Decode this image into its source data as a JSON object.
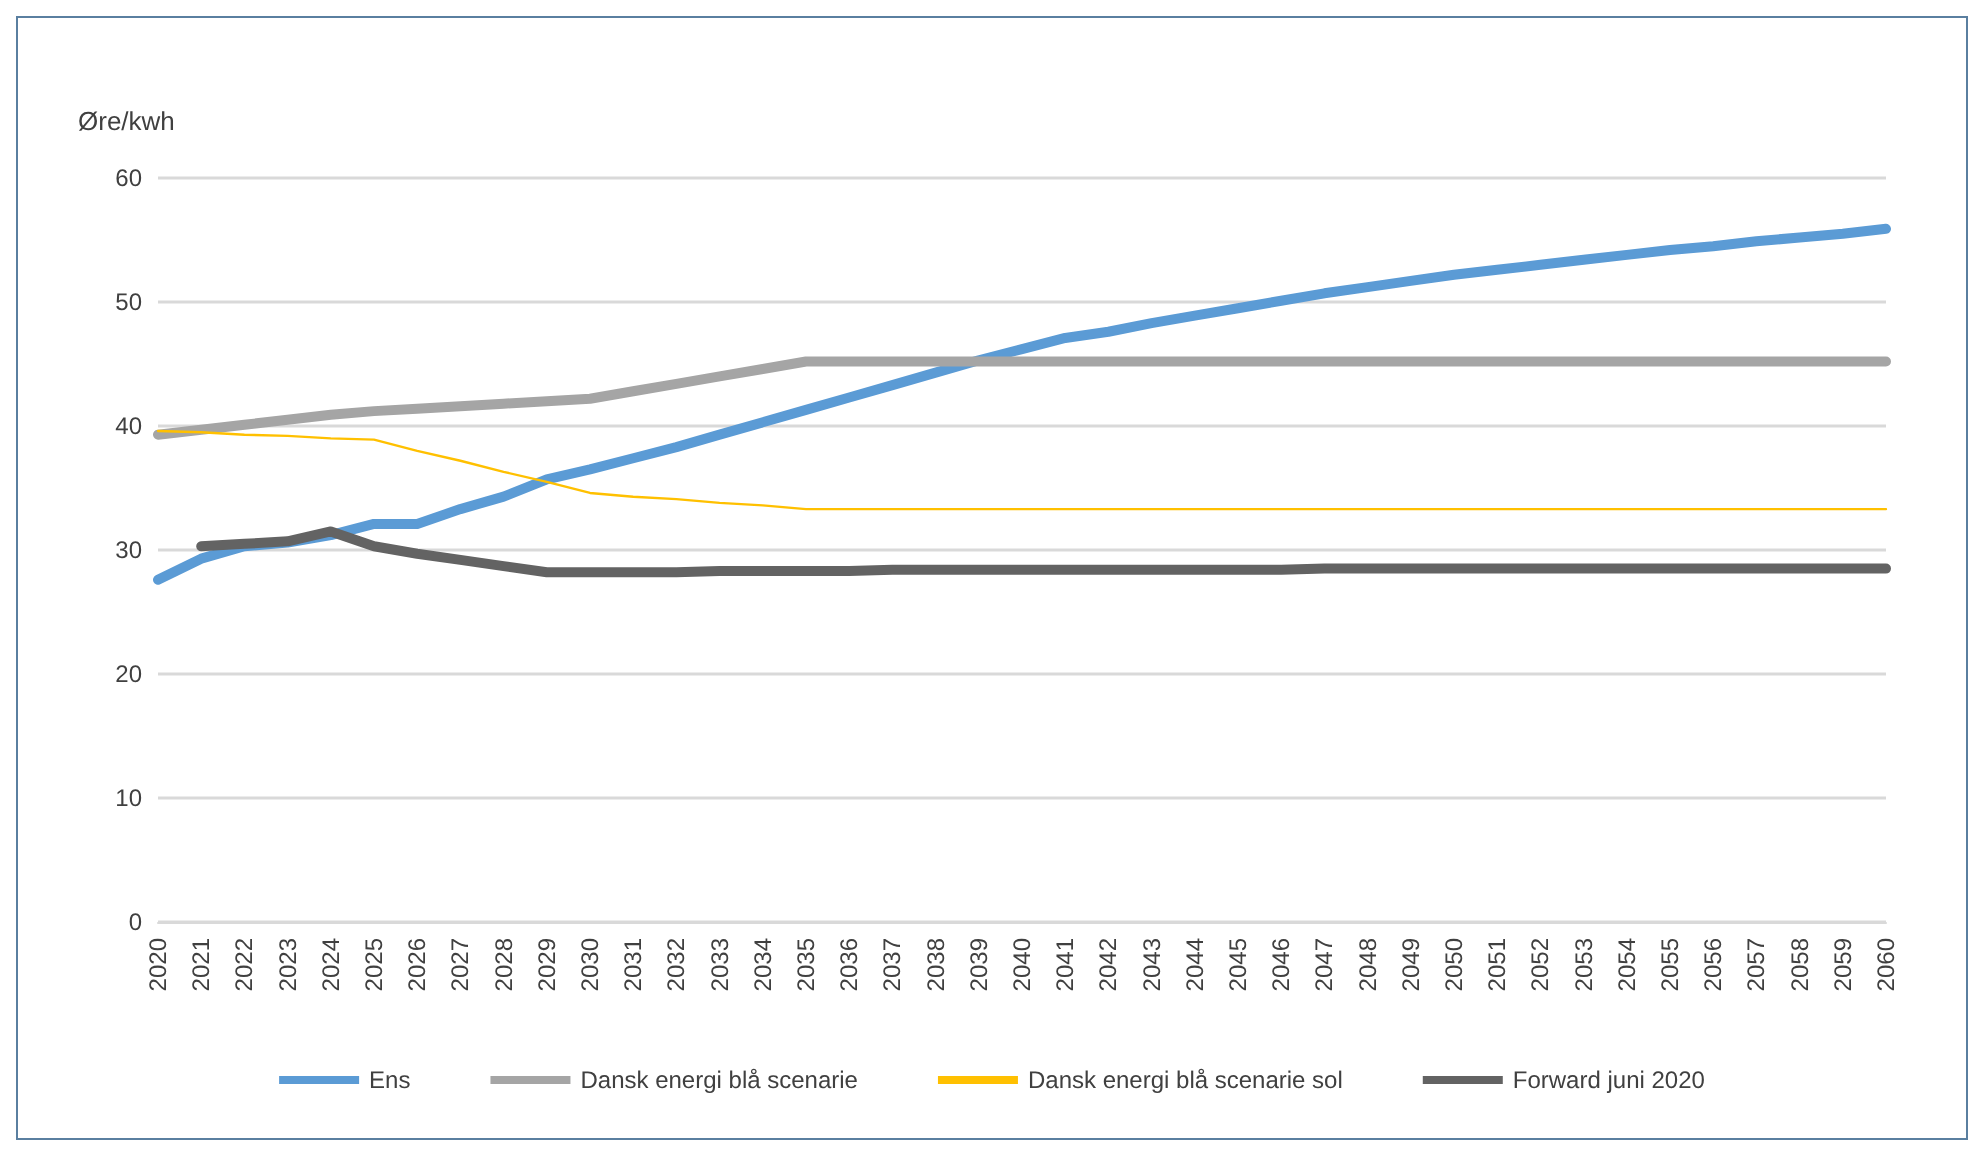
{
  "chart_data": {
    "type": "line",
    "ylabel": "Øre/kwh",
    "categories": [
      "2020",
      "2021",
      "2022",
      "2023",
      "2024",
      "2025",
      "2026",
      "2027",
      "2028",
      "2029",
      "2030",
      "2031",
      "2032",
      "2033",
      "2034",
      "2035",
      "2036",
      "2037",
      "2038",
      "2039",
      "2040",
      "2041",
      "2042",
      "2043",
      "2044",
      "2045",
      "2046",
      "2047",
      "2048",
      "2049",
      "2050",
      "2051",
      "2052",
      "2053",
      "2054",
      "2055",
      "2056",
      "2057",
      "2058",
      "2059",
      "2060"
    ],
    "series": [
      {
        "name": "Ens",
        "color": "#5b9bd5",
        "values": [
          27.6,
          29.3,
          30.3,
          30.6,
          31.2,
          32.1,
          32.1,
          33.3,
          34.3,
          35.7,
          36.5,
          37.4,
          38.3,
          39.3,
          40.3,
          41.3,
          42.3,
          43.3,
          44.3,
          45.3,
          46.2,
          47.1,
          47.6,
          48.3,
          48.9,
          49.5,
          50.1,
          50.7,
          51.2,
          51.7,
          52.2,
          52.6,
          53.0,
          53.4,
          53.8,
          54.2,
          54.5,
          54.9,
          55.2,
          55.5,
          55.9
        ]
      },
      {
        "name": "Dansk energi blå scenarie",
        "color": "#a5a5a5",
        "values": [
          39.3,
          39.7,
          40.1,
          40.5,
          40.9,
          41.2,
          41.4,
          41.6,
          41.8,
          42.0,
          42.2,
          42.8,
          43.4,
          44.0,
          44.6,
          45.2,
          45.2,
          45.2,
          45.2,
          45.2,
          45.2,
          45.2,
          45.2,
          45.2,
          45.2,
          45.2,
          45.2,
          45.2,
          45.2,
          45.2,
          45.2,
          45.2,
          45.2,
          45.2,
          45.2,
          45.2,
          45.2,
          45.2,
          45.2,
          45.2,
          45.2
        ]
      },
      {
        "name": "Dansk energi blå scenarie sol",
        "color": "#ffc000",
        "values": [
          39.6,
          39.5,
          39.3,
          39.2,
          39.0,
          38.9,
          38.0,
          37.2,
          36.3,
          35.5,
          34.6,
          34.3,
          34.1,
          33.8,
          33.6,
          33.3,
          33.3,
          33.3,
          33.3,
          33.3,
          33.3,
          33.3,
          33.3,
          33.3,
          33.3,
          33.3,
          33.3,
          33.3,
          33.3,
          33.3,
          33.3,
          33.3,
          33.3,
          33.3,
          33.3,
          33.3,
          33.3,
          33.3,
          33.3,
          33.3,
          33.3
        ]
      },
      {
        "name": "Forward juni 2020",
        "color": "#636363",
        "values": [
          null,
          30.3,
          30.5,
          30.7,
          31.5,
          30.3,
          29.7,
          29.2,
          28.7,
          28.2,
          28.2,
          28.2,
          28.2,
          28.3,
          28.3,
          28.3,
          28.3,
          28.4,
          28.4,
          28.4,
          28.4,
          28.4,
          28.4,
          28.4,
          28.4,
          28.4,
          28.4,
          28.5,
          28.5,
          28.5,
          28.5,
          28.5,
          28.5,
          28.5,
          28.5,
          28.5,
          28.5,
          28.5,
          28.5,
          28.5,
          28.5
        ]
      }
    ],
    "ylim": [
      0,
      60
    ],
    "yticks": [
      0,
      10,
      20,
      30,
      40,
      50,
      60
    ],
    "grid": "y",
    "legend": "bottom",
    "marker": "none"
  }
}
